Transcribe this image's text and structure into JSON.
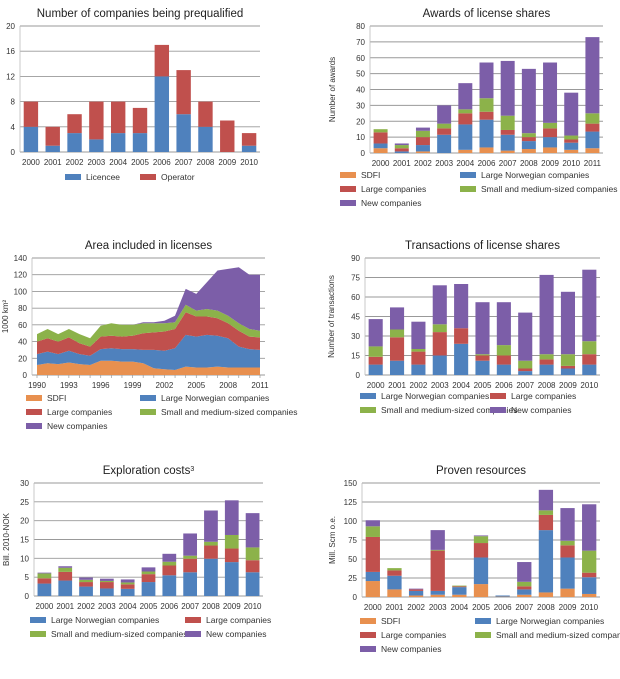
{
  "colors": {
    "sdfi": "#e8904f",
    "large_norwegian": "#4f81bd",
    "large": "#c0504d",
    "small_medium": "#8cb24a",
    "new": "#7c5ea8",
    "licencee": "#4f81bd",
    "operator": "#c0504d"
  },
  "chart_data": [
    {
      "id": "prequalified",
      "type": "bar",
      "stacked": true,
      "title": "Number of companies being prequalified",
      "xlabel": "",
      "ylabel": "",
      "ylim": [
        0,
        20
      ],
      "yticks": [
        0,
        4,
        8,
        12,
        16,
        20
      ],
      "grid": true,
      "legend_position": "bottom",
      "categories": [
        "2000",
        "2001",
        "2002",
        "2003",
        "2004",
        "2005",
        "2006",
        "2007",
        "2008",
        "2009",
        "2010"
      ],
      "series": [
        {
          "name": "Licencee",
          "color_key": "licencee",
          "values": [
            4,
            1,
            3,
            2,
            3,
            3,
            12,
            6,
            4,
            0,
            1
          ]
        },
        {
          "name": "Operator",
          "color_key": "operator",
          "values": [
            4,
            3,
            3,
            6,
            5,
            4,
            5,
            7,
            4,
            5,
            2
          ]
        }
      ]
    },
    {
      "id": "awards",
      "type": "bar",
      "stacked": true,
      "title": "Awards of license shares",
      "xlabel": "",
      "ylabel": "Number of awards",
      "ylim": [
        0,
        80
      ],
      "yticks": [
        0,
        10,
        20,
        30,
        40,
        50,
        60,
        70,
        80
      ],
      "grid": true,
      "legend_position": "bottom",
      "categories": [
        "2000",
        "2001",
        "2002",
        "2003",
        "2004",
        "2006",
        "2007",
        "2008",
        "2009",
        "2010",
        "2011"
      ],
      "series": [
        {
          "name": "SDFI",
          "color_key": "sdfi",
          "values": [
            3,
            0,
            1,
            0,
            2,
            3.5,
            1.5,
            2.5,
            3.5,
            2,
            3
          ]
        },
        {
          "name": "Large Norwegian companies",
          "color_key": "large_norwegian",
          "values": [
            3,
            1,
            4,
            11.5,
            16,
            17.5,
            10,
            5,
            6.5,
            4.5,
            10.5
          ]
        },
        {
          "name": "Large companies",
          "color_key": "large",
          "values": [
            7,
            2,
            5,
            4,
            7,
            5,
            3,
            2.5,
            5.5,
            2,
            5
          ]
        },
        {
          "name": "Small and medium-sized companies",
          "color_key": "small_medium",
          "values": [
            2,
            2,
            4,
            3,
            2.5,
            8.5,
            9,
            2.5,
            3.5,
            2.5,
            6.5
          ]
        },
        {
          "name": "New companies",
          "color_key": "new",
          "values": [
            0,
            1,
            2,
            11.5,
            16.5,
            22.5,
            34.5,
            40.5,
            38,
            27,
            48
          ]
        }
      ]
    },
    {
      "id": "area",
      "type": "area",
      "stacked": true,
      "title": "Area included in licenses",
      "xlabel": "",
      "ylabel": "1000 km²",
      "ylim": [
        0,
        140
      ],
      "yticks": [
        0,
        20,
        40,
        60,
        80,
        100,
        120,
        140
      ],
      "grid": true,
      "legend_position": "bottom",
      "x": [
        1990,
        1991,
        1992,
        1993,
        1994,
        1995,
        1996,
        1997,
        1998,
        1999,
        2000,
        2001,
        2002,
        2003,
        2004,
        2005,
        2006,
        2007,
        2008,
        2009,
        2010,
        2011
      ],
      "xtick_labels": [
        "1990",
        "1993",
        "1996",
        "1999",
        "2002",
        "2005",
        "2008",
        "2011"
      ],
      "series": [
        {
          "name": "SDFI",
          "color_key": "sdfi",
          "values": [
            12,
            14,
            13,
            15,
            13,
            12,
            17,
            17,
            16,
            16,
            14,
            8,
            7,
            6,
            10,
            9,
            9,
            10,
            9,
            9,
            9,
            9
          ]
        },
        {
          "name": "Large Norwegian companies",
          "color_key": "large_norwegian",
          "values": [
            13,
            14,
            12,
            14,
            12,
            11,
            14,
            15,
            15,
            15,
            16,
            22,
            22,
            26,
            38,
            37,
            39,
            37,
            35,
            25,
            22,
            21
          ]
        },
        {
          "name": "Large companies",
          "color_key": "large",
          "values": [
            15,
            16,
            15,
            16,
            13,
            11,
            15,
            15,
            15,
            16,
            20,
            21,
            23,
            23,
            27,
            24,
            22,
            21,
            18,
            19,
            15,
            15
          ]
        },
        {
          "name": "Small and medium-sized companies",
          "color_key": "small_medium",
          "values": [
            9,
            11,
            9,
            10,
            11,
            10,
            13,
            15,
            14,
            13,
            12,
            11,
            10,
            8,
            9,
            7,
            9,
            9,
            9,
            9,
            9,
            8
          ]
        },
        {
          "name": "New companies",
          "color_key": "new",
          "values": [
            0,
            0,
            0,
            0,
            0,
            0,
            0,
            0,
            0,
            0,
            1,
            1,
            3,
            8,
            19,
            20,
            32,
            48,
            56,
            67,
            65,
            67
          ]
        }
      ]
    },
    {
      "id": "transactions",
      "type": "bar",
      "stacked": true,
      "title": "Transactions of license shares",
      "xlabel": "",
      "ylabel": "Number of transactions",
      "ylim": [
        0,
        90
      ],
      "yticks": [
        0,
        15,
        30,
        45,
        60,
        75,
        90
      ],
      "grid": true,
      "legend_position": "bottom",
      "categories": [
        "2000",
        "2001",
        "2002",
        "2003",
        "2004",
        "2005",
        "2006",
        "2007",
        "2008",
        "2009",
        "2010"
      ],
      "series": [
        {
          "name": "Large Norwegian companies",
          "color_key": "large_norwegian",
          "values": [
            8,
            11,
            8,
            15,
            24,
            11,
            8,
            3,
            8,
            5,
            8
          ]
        },
        {
          "name": "Large companies",
          "color_key": "large",
          "values": [
            6,
            18,
            10,
            18,
            12,
            4,
            7,
            2,
            4,
            2,
            8
          ]
        },
        {
          "name": "Small and medium-sized companies",
          "color_key": "small_medium",
          "values": [
            8,
            6,
            2,
            6,
            0,
            1,
            8,
            6,
            4,
            9,
            10
          ]
        },
        {
          "name": "New companies",
          "color_key": "new",
          "values": [
            21,
            17,
            21,
            30,
            34,
            40,
            33,
            37,
            61,
            48,
            55
          ]
        }
      ]
    },
    {
      "id": "exploration",
      "type": "bar",
      "stacked": true,
      "title": "Exploration costs",
      "title_superscript": "3",
      "xlabel": "",
      "ylabel": "Bill. 2010-NOK",
      "ylim": [
        0,
        30
      ],
      "yticks": [
        0,
        5,
        10,
        15,
        20,
        25,
        30
      ],
      "grid": true,
      "legend_position": "bottom",
      "categories": [
        "2000",
        "2001",
        "2002",
        "2003",
        "2004",
        "2005",
        "2006",
        "2007",
        "2008",
        "2009",
        "2010"
      ],
      "series": [
        {
          "name": "Large Norwegian companies",
          "color_key": "large_norwegian",
          "values": [
            3.3,
            4.1,
            2.5,
            2.0,
            1.9,
            3.7,
            5.5,
            6.3,
            9.9,
            9.0,
            6.3
          ]
        },
        {
          "name": "Large companies",
          "color_key": "large",
          "values": [
            1.4,
            2.3,
            1.2,
            1.7,
            1.2,
            2.1,
            2.6,
            3.6,
            3.5,
            3.6,
            3.2
          ]
        },
        {
          "name": "Small and medium-sized companies",
          "color_key": "small_medium",
          "values": [
            1.3,
            1.1,
            0.6,
            0.3,
            0.5,
            0.7,
            1.0,
            0.8,
            1.0,
            3.6,
            3.4
          ]
        },
        {
          "name": "New companies",
          "color_key": "new",
          "values": [
            0.2,
            0.4,
            0.6,
            0.6,
            0.8,
            1.1,
            2.1,
            5.9,
            8.3,
            9.2,
            9.1
          ]
        }
      ]
    },
    {
      "id": "proven",
      "type": "bar",
      "stacked": true,
      "title": "Proven resources",
      "xlabel": "",
      "ylabel": "Mill. Scm o.e.",
      "ylim": [
        0,
        150
      ],
      "yticks": [
        0,
        25,
        50,
        75,
        100,
        125,
        150
      ],
      "grid": true,
      "legend_position": "bottom",
      "categories": [
        "2000",
        "2001",
        "2002",
        "2003",
        "2004",
        "2005",
        "2006",
        "2007",
        "2008",
        "2009",
        "2010"
      ],
      "series": [
        {
          "name": "SDFI",
          "color_key": "sdfi",
          "values": [
            21,
            10,
            2,
            3,
            3,
            17,
            0.5,
            3,
            6,
            11,
            4
          ]
        },
        {
          "name": "Large Norwegian companies",
          "color_key": "large_norwegian",
          "values": [
            12,
            18,
            6,
            5,
            10,
            35,
            1.5,
            7,
            82,
            41,
            22
          ]
        },
        {
          "name": "Large companies",
          "color_key": "large",
          "values": [
            46,
            7,
            2,
            53,
            1,
            19,
            0,
            4,
            20,
            16,
            6
          ]
        },
        {
          "name": "Small and medium-sized companies",
          "color_key": "small_medium",
          "values": [
            14,
            3,
            0,
            1,
            1,
            9,
            0,
            6,
            6,
            6,
            29
          ]
        },
        {
          "name": "New companies",
          "color_key": "new",
          "values": [
            8,
            0,
            1,
            26,
            0,
            1,
            0,
            26,
            27,
            43,
            61
          ]
        }
      ]
    }
  ]
}
